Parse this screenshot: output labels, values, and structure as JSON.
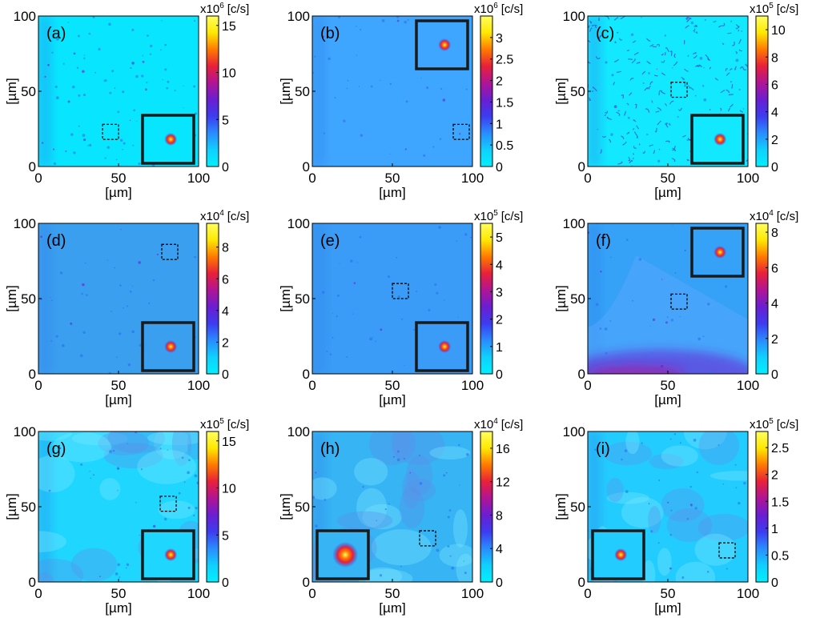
{
  "chart_data": [
    {
      "type": "heatmap",
      "label": "(a)",
      "xlabel": "[µm]",
      "ylabel": "[µm]",
      "xlim": [
        0,
        100
      ],
      "ylim": [
        0,
        100
      ],
      "x_ticks": [
        0,
        50,
        100
      ],
      "y_ticks": [
        0,
        50,
        100
      ],
      "x_tick_labels": [
        "0",
        "50",
        "100"
      ],
      "y_tick_labels": [
        "0",
        "50",
        "100"
      ],
      "colorbar": {
        "exponent_prefix": "x10",
        "exponent": "6",
        "unit": "[c/s]",
        "range": [
          0,
          16
        ],
        "ticks": [
          0,
          5,
          10,
          15
        ],
        "tick_labels": [
          "0",
          "5",
          "10",
          "15"
        ]
      },
      "inset_region": {
        "x": [
          40,
          50
        ],
        "y": [
          18,
          28
        ]
      },
      "inset_placement": "bottom-right",
      "features": "scattered sparse emitters, diffuse streak near x=10"
    },
    {
      "type": "heatmap",
      "label": "(b)",
      "xlabel": "[µm]",
      "ylabel": "[µm]",
      "xlim": [
        0,
        100
      ],
      "ylim": [
        0,
        100
      ],
      "x_ticks": [
        0,
        50,
        100
      ],
      "y_ticks": [
        0,
        50,
        100
      ],
      "x_tick_labels": [
        "0",
        "50",
        "100"
      ],
      "y_tick_labels": [
        "0",
        "50",
        "100"
      ],
      "colorbar": {
        "exponent_prefix": "x10",
        "exponent": "6",
        "unit": "[c/s]",
        "range": [
          0,
          3.5
        ],
        "ticks": [
          0,
          0.5,
          1,
          1.5,
          2,
          2.5,
          3
        ],
        "tick_labels": [
          "0",
          "0.5",
          "1",
          "1.5",
          "2",
          "2.5",
          "3"
        ]
      },
      "inset_region": {
        "x": [
          88,
          98
        ],
        "y": [
          18,
          28
        ]
      },
      "inset_placement": "top-right",
      "features": "uniform background with few bright spots"
    },
    {
      "type": "heatmap",
      "label": "(c)",
      "xlabel": "[µm]",
      "ylabel": "[µm]",
      "xlim": [
        0,
        100
      ],
      "ylim": [
        0,
        100
      ],
      "x_ticks": [
        0,
        50,
        100
      ],
      "y_ticks": [
        0,
        50,
        100
      ],
      "x_tick_labels": [
        "0",
        "50",
        "100"
      ],
      "y_tick_labels": [
        "0",
        "50",
        "100"
      ],
      "colorbar": {
        "exponent_prefix": "x10",
        "exponent": "5",
        "unit": "[c/s]",
        "range": [
          0,
          11
        ],
        "ticks": [
          0,
          2,
          4,
          6,
          8,
          10
        ],
        "tick_labels": [
          "0",
          "2",
          "4",
          "6",
          "8",
          "10"
        ]
      },
      "inset_region": {
        "x": [
          52,
          62
        ],
        "y": [
          46,
          56
        ]
      },
      "inset_placement": "bottom-right",
      "features": "dense network of dark filaments"
    },
    {
      "type": "heatmap",
      "label": "(d)",
      "xlabel": "[µm]",
      "ylabel": "[µm]",
      "xlim": [
        0,
        100
      ],
      "ylim": [
        0,
        100
      ],
      "x_ticks": [
        0,
        50,
        100
      ],
      "y_ticks": [
        0,
        50,
        100
      ],
      "x_tick_labels": [
        "0",
        "50",
        "100"
      ],
      "y_tick_labels": [
        "0",
        "50",
        "100"
      ],
      "colorbar": {
        "exponent_prefix": "x10",
        "exponent": "4",
        "unit": "[c/s]",
        "range": [
          0,
          9.5
        ],
        "ticks": [
          0,
          2,
          4,
          6,
          8
        ],
        "tick_labels": [
          "0",
          "2",
          "4",
          "6",
          "8"
        ]
      },
      "inset_region": {
        "x": [
          77,
          87
        ],
        "y": [
          76,
          86
        ]
      },
      "inset_placement": "bottom-right",
      "features": "uniform background, fine speckle"
    },
    {
      "type": "heatmap",
      "label": "(e)",
      "xlabel": "[µm]",
      "ylabel": "[µm]",
      "xlim": [
        0,
        100
      ],
      "ylim": [
        0,
        100
      ],
      "x_ticks": [
        0,
        50,
        100
      ],
      "y_ticks": [
        0,
        50,
        100
      ],
      "x_tick_labels": [
        "0",
        "50",
        "100"
      ],
      "y_tick_labels": [
        "0",
        "50",
        "100"
      ],
      "colorbar": {
        "exponent_prefix": "x10",
        "exponent": "5",
        "unit": "[c/s]",
        "range": [
          0,
          5.5
        ],
        "ticks": [
          0,
          1,
          2,
          3,
          4,
          5
        ],
        "tick_labels": [
          "0",
          "1",
          "2",
          "3",
          "4",
          "5"
        ]
      },
      "inset_region": {
        "x": [
          50,
          60
        ],
        "y": [
          50,
          60
        ]
      },
      "inset_placement": "bottom-right",
      "features": "uniform background with single emitter"
    },
    {
      "type": "heatmap",
      "label": "(f)",
      "xlabel": "[µm]",
      "ylabel": "[µm]",
      "xlim": [
        0,
        100
      ],
      "ylim": [
        0,
        100
      ],
      "x_ticks": [
        0,
        50,
        100
      ],
      "y_ticks": [
        0,
        50,
        100
      ],
      "x_tick_labels": [
        "0",
        "50",
        "100"
      ],
      "y_tick_labels": [
        "0",
        "50",
        "100"
      ],
      "colorbar": {
        "exponent_prefix": "x10",
        "exponent": "4",
        "unit": "[c/s]",
        "range": [
          0,
          8.5
        ],
        "ticks": [
          0,
          2,
          4,
          6,
          8
        ],
        "tick_labels": [
          "0",
          "2",
          "4",
          "6",
          "8"
        ]
      },
      "inset_region": {
        "x": [
          52,
          62
        ],
        "y": [
          43,
          53
        ]
      },
      "inset_placement": "top-right",
      "features": "flake edge boundary, bright emission band at bottom"
    },
    {
      "type": "heatmap",
      "label": "(g)",
      "xlabel": "[µm]",
      "ylabel": "[µm]",
      "xlim": [
        0,
        100
      ],
      "ylim": [
        0,
        100
      ],
      "x_ticks": [
        0,
        50,
        100
      ],
      "y_ticks": [
        0,
        50,
        100
      ],
      "x_tick_labels": [
        "0",
        "50",
        "100"
      ],
      "y_tick_labels": [
        "0",
        "50",
        "100"
      ],
      "colorbar": {
        "exponent_prefix": "x10",
        "exponent": "5",
        "unit": "[c/s]",
        "range": [
          0,
          16
        ],
        "ticks": [
          0,
          5,
          10,
          15
        ],
        "tick_labels": [
          "0",
          "5",
          "10",
          "15"
        ]
      },
      "inset_region": {
        "x": [
          76,
          86
        ],
        "y": [
          47,
          57
        ]
      },
      "inset_placement": "bottom-right",
      "features": "mottled flakes with bright emitters"
    },
    {
      "type": "heatmap",
      "label": "(h)",
      "xlabel": "[µm]",
      "ylabel": "[µm]",
      "xlim": [
        0,
        100
      ],
      "ylim": [
        0,
        100
      ],
      "x_ticks": [
        0,
        50,
        100
      ],
      "y_ticks": [
        0,
        50,
        100
      ],
      "x_tick_labels": [
        "0",
        "50",
        "100"
      ],
      "y_tick_labels": [
        "0",
        "50",
        "100"
      ],
      "colorbar": {
        "exponent_prefix": "x10",
        "exponent": "4",
        "unit": "[c/s]",
        "range": [
          0,
          18
        ],
        "ticks": [
          0,
          4,
          8,
          12,
          16
        ],
        "tick_labels": [
          "0",
          "4",
          "8",
          "12",
          "16"
        ]
      },
      "inset_region": {
        "x": [
          67,
          77
        ],
        "y": [
          24,
          34
        ]
      },
      "inset_placement": "bottom-left",
      "features": "patchy background, bright emitter in box"
    },
    {
      "type": "heatmap",
      "label": "(i)",
      "xlabel": "[µm]",
      "ylabel": "[µm]",
      "xlim": [
        0,
        100
      ],
      "ylim": [
        0,
        100
      ],
      "x_ticks": [
        0,
        50,
        100
      ],
      "y_ticks": [
        0,
        50,
        100
      ],
      "x_tick_labels": [
        "0",
        "50",
        "100"
      ],
      "y_tick_labels": [
        "0",
        "50",
        "100"
      ],
      "colorbar": {
        "exponent_prefix": "x10",
        "exponent": "5",
        "unit": "[c/s]",
        "range": [
          0,
          2.8
        ],
        "ticks": [
          0,
          0.5,
          1,
          1.5,
          2,
          2.5
        ],
        "tick_labels": [
          "0",
          "0.5",
          "1",
          "1.5",
          "2",
          "2.5"
        ]
      },
      "inset_region": {
        "x": [
          82,
          92
        ],
        "y": [
          16,
          26
        ]
      },
      "inset_placement": "bottom-left",
      "features": "patchy background, elongated bright streaks"
    }
  ],
  "colormap": [
    "#00f0ff",
    "#0fd0ff",
    "#2a8cff",
    "#3c3cf0",
    "#6a1ed2",
    "#b01496",
    "#e8203a",
    "#ff7a00",
    "#ffe800",
    "#ffff60"
  ],
  "colors": {
    "axis": "#000000",
    "inset_border": "#1a1a1a",
    "region_box": "#000000"
  }
}
